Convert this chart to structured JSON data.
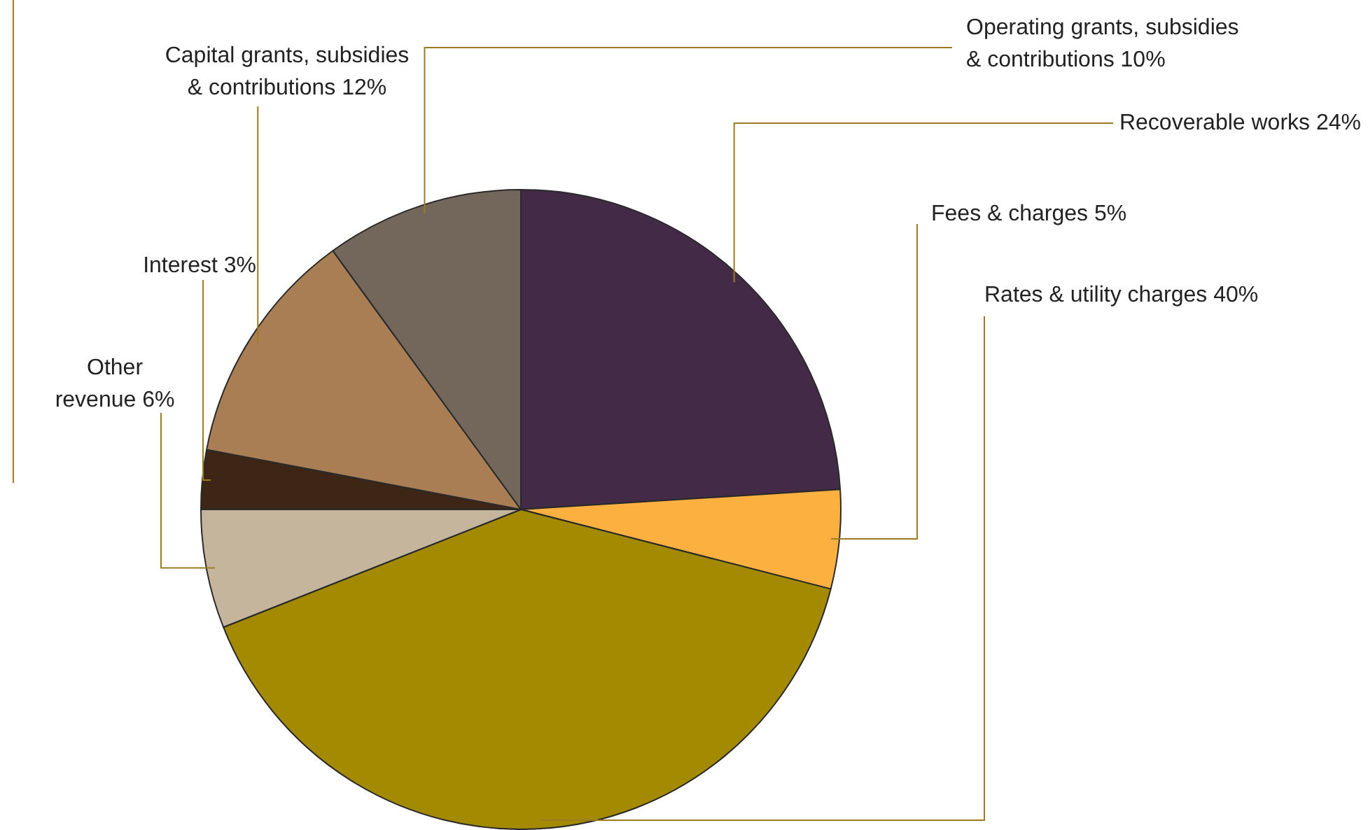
{
  "chart_data": {
    "type": "pie",
    "categories": [
      "Recoverable works",
      "Fees & charges",
      "Rates & utility charges",
      "Other revenue",
      "Interest",
      "Capital grants, subsidies & contributions",
      "Operating grants, subsidies & contributions"
    ],
    "values": [
      24,
      5,
      40,
      6,
      3,
      12,
      10
    ],
    "colors": [
      "#432a47",
      "#fbb040",
      "#a38a00",
      "#c4b59c",
      "#3e2616",
      "#a97e55",
      "#72675a"
    ],
    "value_labels": [
      "24%",
      "5%",
      "40%",
      "6%",
      "3%",
      "12%",
      "10%"
    ]
  }
}
